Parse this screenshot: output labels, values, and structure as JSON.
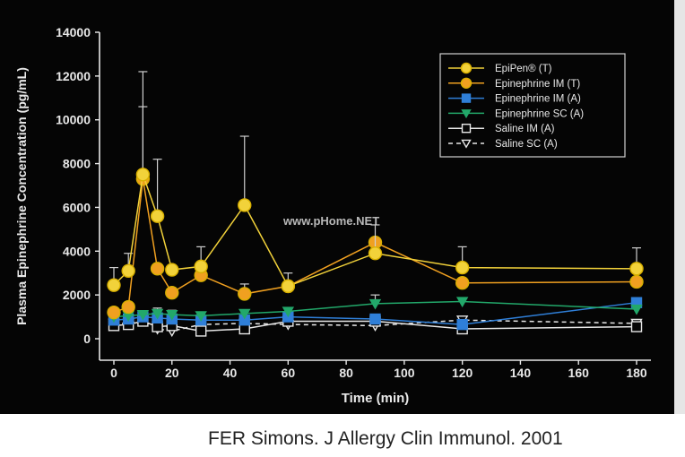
{
  "citation": "FER Simons. J Allergy Clin Immunol. 2001",
  "watermark": "www.pHome.NET",
  "colors": {
    "background": "#050505",
    "axis": "#e8e8e8",
    "text": "#e8e8e8",
    "epipen": "#f2d23a",
    "epi_im": "#f0a020",
    "epi_im_a": "#2f7fd8",
    "epi_sc": "#22a86a",
    "saline": "#e8e8e8"
  },
  "chart_data": {
    "type": "line",
    "title": "",
    "xlabel": "Time (min)",
    "ylabel": "Plasma Epinephrine Concentration (pg/mL)",
    "xlim": [
      -5,
      185
    ],
    "ylim": [
      0,
      14000
    ],
    "xticks": [
      0,
      20,
      40,
      60,
      80,
      100,
      120,
      140,
      160,
      180
    ],
    "yticks": [
      0,
      2000,
      4000,
      6000,
      8000,
      10000,
      12000,
      14000
    ],
    "legend_position": "top-right",
    "series": [
      {
        "name": "EpiPen® (T)",
        "color": "#f2d23a",
        "marker": "circle",
        "filled": true,
        "dashed": false,
        "x": [
          0,
          5,
          10,
          15,
          20,
          30,
          45,
          60,
          90,
          120,
          180
        ],
        "y": [
          2450,
          3100,
          7500,
          5600,
          3150,
          3300,
          6100,
          2400,
          3900,
          3250,
          3200
        ],
        "err": [
          800,
          800,
          4700,
          2600,
          0,
          900,
          3150,
          600,
          1300,
          950,
          950
        ]
      },
      {
        "name": "Epinephrine IM (T)",
        "color": "#f0a020",
        "marker": "circle",
        "filled": true,
        "dashed": false,
        "x": [
          0,
          5,
          10,
          15,
          20,
          30,
          45,
          60,
          90,
          120,
          180
        ],
        "y": [
          1200,
          1450,
          7300,
          3200,
          2100,
          2900,
          2050,
          2400,
          4400,
          2550,
          2600
        ],
        "err": [
          0,
          0,
          3300,
          0,
          0,
          0,
          450,
          0,
          0,
          0,
          0
        ]
      },
      {
        "name": "Epinephrine IM (A)",
        "color": "#2f7fd8",
        "marker": "square",
        "filled": true,
        "dashed": false,
        "x": [
          0,
          5,
          10,
          15,
          20,
          30,
          45,
          60,
          90,
          120,
          180
        ],
        "y": [
          850,
          900,
          1000,
          950,
          900,
          850,
          850,
          1000,
          900,
          650,
          1650
        ],
        "err": [
          0,
          0,
          0,
          0,
          0,
          0,
          0,
          0,
          0,
          0,
          0
        ]
      },
      {
        "name": "Epinephrine SC (A)",
        "color": "#22a86a",
        "marker": "triangle-down",
        "filled": true,
        "dashed": false,
        "x": [
          0,
          5,
          10,
          15,
          20,
          30,
          45,
          60,
          90,
          120,
          180
        ],
        "y": [
          1000,
          1050,
          1100,
          1150,
          1100,
          1050,
          1150,
          1250,
          1600,
          1700,
          1350
        ],
        "err": [
          0,
          0,
          0,
          250,
          200,
          0,
          0,
          0,
          400,
          0,
          0
        ]
      },
      {
        "name": "Saline IM (A)",
        "color": "#e8e8e8",
        "marker": "square",
        "filled": false,
        "dashed": false,
        "x": [
          0,
          5,
          10,
          15,
          20,
          30,
          45,
          60,
          90,
          120,
          180
        ],
        "y": [
          600,
          650,
          800,
          550,
          600,
          350,
          450,
          800,
          800,
          450,
          550
        ],
        "err": [
          0,
          0,
          0,
          0,
          0,
          0,
          0,
          0,
          0,
          0,
          0
        ]
      },
      {
        "name": "Saline SC (A)",
        "color": "#e8e8e8",
        "marker": "triangle-down",
        "filled": false,
        "dashed": true,
        "x": [
          0,
          5,
          10,
          15,
          20,
          30,
          45,
          60,
          90,
          120,
          180
        ],
        "y": [
          700,
          700,
          850,
          450,
          350,
          650,
          700,
          650,
          600,
          850,
          700
        ],
        "err": [
          0,
          0,
          0,
          0,
          0,
          0,
          0,
          0,
          0,
          0,
          0
        ]
      }
    ]
  }
}
